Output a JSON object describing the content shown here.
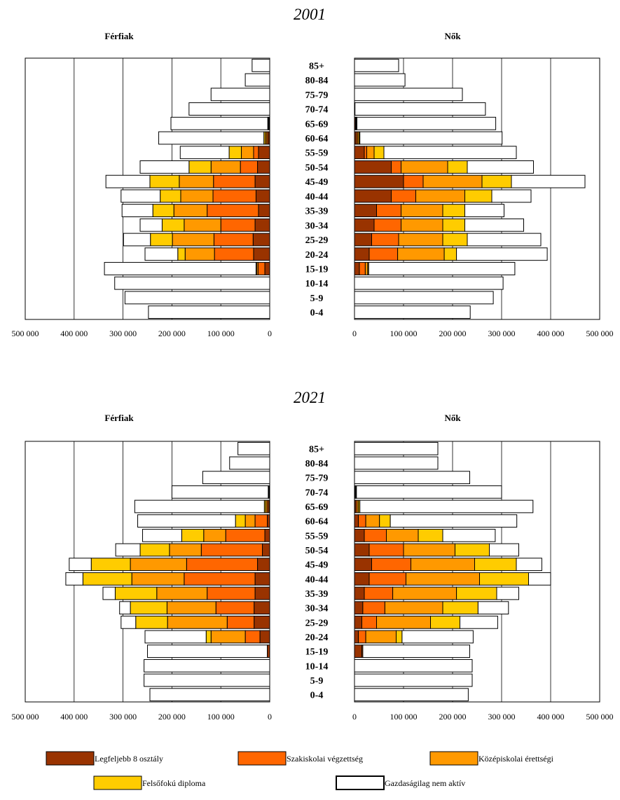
{
  "legend": [
    {
      "key": "l8",
      "label": "Legfeljebb 8 osztály",
      "color": "#993300"
    },
    {
      "key": "szak",
      "label": "Szakiskolai végzettség",
      "color": "#ff6600"
    },
    {
      "key": "kozep",
      "label": "Középiskolai érettségi",
      "color": "#ff9900"
    },
    {
      "key": "felso",
      "label": "Felsőfokú diploma",
      "color": "#ffcc00"
    },
    {
      "key": "inaktiv",
      "label": "Gazdaságilag nem aktív",
      "color": "#ffffff"
    }
  ],
  "chart_data": [
    {
      "type": "bar",
      "title": "2001",
      "left_title": "Férfiak",
      "right_title": "Nők",
      "categories": [
        "85+",
        "80-84",
        "75-79",
        "70-74",
        "65-69",
        "60-64",
        "55-59",
        "50-54",
        "45-49",
        "40-44",
        "35-39",
        "30-34",
        "25-29",
        "20-24",
        "15-19",
        "10-14",
        "5-9",
        "0-4"
      ],
      "xlim": [
        0,
        500000
      ],
      "x_ticks": [
        "500 000",
        "400 000",
        "300 000",
        "200 000",
        "100 000",
        "0"
      ],
      "x_ticks_right": [
        "0",
        "100 000",
        "200 000",
        "300 000",
        "400 000",
        "500 000"
      ],
      "men": [
        {
          "name": "Legfeljebb 8 osztály",
          "values": [
            0,
            0,
            0,
            0,
            1000,
            3000,
            23000,
            25000,
            30000,
            28000,
            23000,
            30000,
            34000,
            33000,
            10000,
            0,
            0,
            0
          ]
        },
        {
          "name": "Szakiskolai végzettség",
          "values": [
            0,
            0,
            0,
            0,
            1000,
            3000,
            10000,
            35000,
            85000,
            88000,
            105000,
            70000,
            80000,
            80000,
            14000,
            0,
            0,
            0
          ]
        },
        {
          "name": "Középiskolai érettségi",
          "values": [
            0,
            0,
            0,
            0,
            1000,
            3000,
            25000,
            60000,
            70000,
            66000,
            68000,
            75000,
            85000,
            60000,
            3000,
            0,
            0,
            0
          ]
        },
        {
          "name": "Felsőfokú diploma",
          "values": [
            0,
            0,
            0,
            0,
            1000,
            3000,
            25000,
            45000,
            60000,
            42000,
            43000,
            45000,
            45000,
            15000,
            1000,
            0,
            0,
            0
          ]
        },
        {
          "name": "Gazdaságilag nem aktív",
          "values": [
            36000,
            50000,
            120000,
            165000,
            198000,
            215000,
            100000,
            100000,
            90000,
            80000,
            63000,
            45000,
            55000,
            67000,
            310000,
            317000,
            296000,
            248000
          ]
        }
      ],
      "women": [
        {
          "name": "Legfeljebb 8 osztály",
          "values": [
            0,
            0,
            0,
            1000,
            2000,
            3000,
            20000,
            75000,
            100000,
            75000,
            45000,
            40000,
            35000,
            30000,
            10000,
            0,
            0,
            0
          ]
        },
        {
          "name": "Szakiskolai végzettség",
          "values": [
            0,
            0,
            0,
            0,
            1000,
            3000,
            5000,
            20000,
            40000,
            50000,
            50000,
            55000,
            55000,
            58000,
            12000,
            0,
            0,
            0
          ]
        },
        {
          "name": "Középiskolai érettségi",
          "values": [
            0,
            0,
            0,
            0,
            1000,
            3000,
            15000,
            95000,
            120000,
            100000,
            85000,
            85000,
            90000,
            95000,
            5000,
            0,
            0,
            0
          ]
        },
        {
          "name": "Felsőfokú diploma",
          "values": [
            0,
            0,
            0,
            0,
            1000,
            2000,
            20000,
            40000,
            60000,
            55000,
            45000,
            45000,
            50000,
            25000,
            2000,
            0,
            0,
            0
          ]
        },
        {
          "name": "Gazdaságilag nem aktív",
          "values": [
            90000,
            103000,
            220000,
            266000,
            283000,
            290000,
            270000,
            135000,
            150000,
            80000,
            80000,
            120000,
            150000,
            185000,
            298000,
            303000,
            283000,
            236000
          ]
        }
      ]
    },
    {
      "type": "bar",
      "title": "2021",
      "left_title": "Férfiak",
      "right_title": "Nők",
      "categories": [
        "85+",
        "80-84",
        "75-79",
        "70-74",
        "65-69",
        "60-64",
        "55-59",
        "50-54",
        "45-49",
        "40-44",
        "35-39",
        "30-34",
        "25-29",
        "20-24",
        "15-19",
        "10-14",
        "5-9",
        "0-4"
      ],
      "xlim": [
        0,
        500000
      ],
      "x_ticks": [
        "500 000",
        "400 000",
        "300 000",
        "200 000",
        "100 000",
        "0"
      ],
      "x_ticks_right": [
        "0",
        "100 000",
        "200 000",
        "300 000",
        "400 000",
        "500 000"
      ],
      "men": [
        {
          "name": "Legfeljebb 8 osztály",
          "values": [
            0,
            0,
            0,
            1000,
            2000,
            5000,
            10000,
            15000,
            25000,
            30000,
            30000,
            32000,
            32000,
            20000,
            5000,
            0,
            0,
            0
          ]
        },
        {
          "name": "Szakiskolai végzettség",
          "values": [
            0,
            0,
            0,
            1000,
            3000,
            25000,
            80000,
            125000,
            145000,
            145000,
            98000,
            78000,
            55000,
            30000,
            0,
            0,
            0,
            0
          ]
        },
        {
          "name": "Középiskolai érettségi",
          "values": [
            0,
            0,
            0,
            1000,
            3000,
            20000,
            45000,
            65000,
            115000,
            107000,
            103000,
            100000,
            122000,
            70000,
            0,
            0,
            0,
            0
          ]
        },
        {
          "name": "Felsőfokú diploma",
          "values": [
            0,
            0,
            0,
            0,
            3000,
            20000,
            45000,
            60000,
            80000,
            100000,
            85000,
            75000,
            65000,
            10000,
            0,
            0,
            0,
            0
          ]
        },
        {
          "name": "Gazdaságilag nem aktív",
          "values": [
            65000,
            82000,
            137000,
            197000,
            265000,
            200000,
            80000,
            50000,
            45000,
            35000,
            25000,
            22000,
            30000,
            125000,
            245000,
            257000,
            257000,
            245000
          ]
        }
      ],
      "women": [
        {
          "name": "Legfeljebb 8 osztály",
          "values": [
            0,
            0,
            0,
            1000,
            2000,
            8000,
            20000,
            30000,
            35000,
            30000,
            20000,
            17000,
            15000,
            8000,
            15000,
            0,
            0,
            0
          ]
        },
        {
          "name": "Szakiskolai végzettség",
          "values": [
            0,
            0,
            0,
            1000,
            3000,
            15000,
            45000,
            70000,
            80000,
            75000,
            58000,
            45000,
            30000,
            15000,
            2000,
            0,
            0,
            0
          ]
        },
        {
          "name": "Középiskolai érettségi",
          "values": [
            0,
            0,
            0,
            1000,
            3000,
            28000,
            65000,
            105000,
            130000,
            150000,
            130000,
            118000,
            110000,
            62000,
            0,
            0,
            0,
            0
          ]
        },
        {
          "name": "Felsőfokú diploma",
          "values": [
            0,
            0,
            0,
            1000,
            3000,
            22000,
            50000,
            70000,
            85000,
            100000,
            82000,
            72000,
            60000,
            12000,
            0,
            0,
            0,
            0
          ]
        },
        {
          "name": "Gazdaságilag nem aktív",
          "values": [
            170000,
            170000,
            235000,
            296000,
            353000,
            258000,
            107000,
            60000,
            52000,
            45000,
            45000,
            62000,
            77000,
            145000,
            218000,
            240000,
            240000,
            232000
          ]
        }
      ]
    }
  ]
}
